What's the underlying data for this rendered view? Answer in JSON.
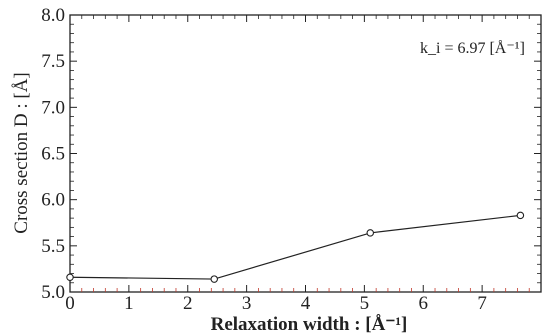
{
  "chart_data": {
    "type": "line",
    "xlabel": "Relaxation width : [Å⁻¹]",
    "ylabel": "Cross section D : [Å]",
    "xlim": [
      0,
      8
    ],
    "ylim": [
      5.0,
      8.0
    ],
    "x_ticks": [
      "0",
      "1",
      "2",
      "3",
      "4",
      "5",
      "6",
      "7"
    ],
    "y_ticks": [
      "5.0",
      "5.5",
      "6.0",
      "6.5",
      "7.0",
      "7.5",
      "8.0"
    ],
    "annotation": "k_i = 6.97 [Å⁻¹]",
    "grid": false,
    "markers": "open-circle",
    "series": [
      {
        "x": [
          0,
          2.45,
          5.1,
          7.65
        ],
        "y": [
          5.16,
          5.14,
          5.64,
          5.83
        ]
      }
    ]
  }
}
